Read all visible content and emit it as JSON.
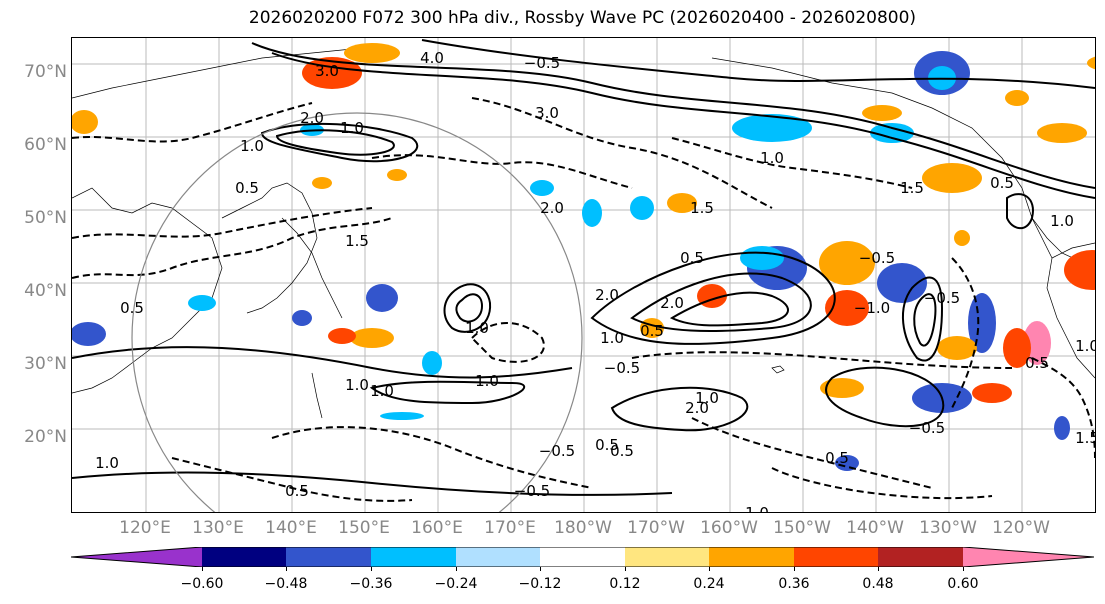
{
  "title": "2026020200 F072 300 hPa div., Rossby Wave PC (2026020400 - 2026020800)",
  "lat_labels": [
    "70°N",
    "60°N",
    "50°N",
    "40°N",
    "30°N",
    "20°N"
  ],
  "lon_labels": [
    "120°E",
    "130°E",
    "140°E",
    "150°E",
    "160°E",
    "170°E",
    "180°W",
    "170°W",
    "160°W",
    "150°W",
    "140°W",
    "130°W",
    "120°W"
  ],
  "colorbar": {
    "colors": [
      "#9932cc",
      "#000080",
      "#3355cc",
      "#00bfff",
      "#b0e0ff",
      "#ffffff",
      "#ffe680",
      "#ffa500",
      "#ff4500",
      "#b22222",
      "#ff85b0"
    ],
    "ticks": [
      "−0.60",
      "−0.48",
      "−0.36",
      "−0.24",
      "−0.12",
      "0.12",
      "0.24",
      "0.36",
      "0.48",
      "0.60"
    ]
  },
  "contour_labels": [
    "1.0",
    "2.0",
    "1.5",
    "0.5",
    "−0.5",
    "1.0",
    "2.0",
    "0.5",
    "1.0",
    "−0.5",
    "2.0",
    "1.5",
    "0.5",
    "−0.5",
    "0.5",
    "1.0",
    "1.0",
    "2.0",
    "0.5",
    "−0.5",
    "−0.5",
    "1.0",
    "−1.0",
    "1.0",
    "0.5",
    "1.0",
    "3.0",
    "4.0",
    "1.0",
    "3.0",
    "2.0",
    "1.5",
    "−0.5",
    "0.5",
    "1.0",
    "0.5",
    "1.0",
    "1.5",
    "−0.5",
    "1.0",
    "0.5",
    "0.5",
    "1.0"
  ]
}
